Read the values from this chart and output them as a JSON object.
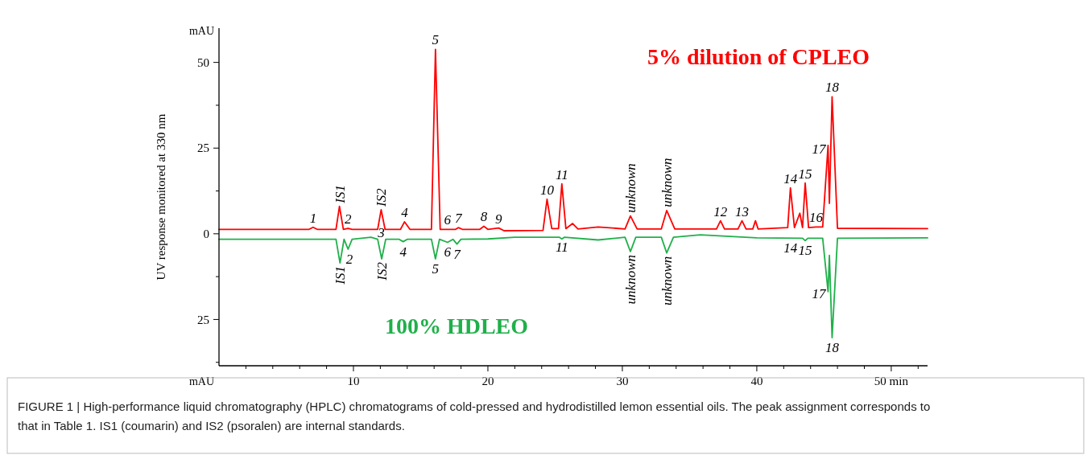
{
  "chart_data": {
    "type": "line",
    "ylabel": "UV response monitored at 330 nm",
    "xlim": [
      0,
      52.7
    ],
    "ylim": [
      -38.5,
      60
    ],
    "xticks": [
      {
        "value": 2,
        "label": null
      },
      {
        "value": 4,
        "label": null
      },
      {
        "value": 6,
        "label": null
      },
      {
        "value": 8,
        "label": null
      },
      10,
      {
        "value": 12,
        "label": null
      },
      {
        "value": 14,
        "label": null
      },
      {
        "value": 16,
        "label": null
      },
      {
        "value": 18,
        "label": null
      },
      20,
      {
        "value": 22,
        "label": null
      },
      {
        "value": 24,
        "label": null
      },
      {
        "value": 26,
        "label": null
      },
      {
        "value": 28,
        "label": null
      },
      30,
      {
        "value": 32,
        "label": null
      },
      {
        "value": 34,
        "label": null
      },
      {
        "value": 36,
        "label": null
      },
      {
        "value": 38,
        "label": null
      },
      40,
      {
        "value": 42,
        "label": null
      },
      {
        "value": 44,
        "label": null
      },
      {
        "value": 46,
        "label": null
      },
      {
        "value": 48,
        "label": null
      },
      {
        "value": 50,
        "label": "50 min"
      },
      {
        "value": 52,
        "label": null
      }
    ],
    "yticks": [
      {
        "value": -37.5,
        "label": null
      },
      {
        "value": -25,
        "label": "25"
      },
      {
        "value": -12.5,
        "label": null
      },
      0,
      {
        "value": 12.5,
        "label": null
      },
      25,
      {
        "value": 37.5,
        "label": null
      },
      50
    ],
    "series": [
      {
        "name": "5% dilution of CPLEO",
        "color": "#ff0000",
        "x": [
          0,
          6.7,
          7.0,
          7.3,
          8.7,
          8.96,
          9.25,
          9.6,
          9.9,
          11.8,
          12.06,
          12.35,
          13.5,
          13.8,
          14.2,
          15.8,
          16.1,
          16.45,
          17.6,
          17.8,
          18.1,
          19.4,
          19.7,
          20.0,
          20.8,
          21.2,
          24.1,
          24.4,
          24.75,
          25.25,
          25.5,
          25.8,
          26.3,
          26.7,
          28.2,
          30.2,
          30.6,
          31.1,
          32.9,
          33.3,
          33.9,
          37.0,
          37.3,
          37.6,
          38.6,
          38.9,
          39.2,
          39.7,
          39.9,
          40.1,
          42.3,
          42.5,
          42.8,
          43.2,
          43.4,
          43.6,
          43.85,
          44.4,
          44.9,
          45.3,
          45.4,
          45.6,
          46.0,
          52.7
        ],
        "values": [
          1.3,
          1.3,
          1.9,
          1.3,
          1.3,
          8.0,
          1.3,
          1.6,
          1.3,
          1.3,
          7.0,
          1.3,
          1.3,
          3.5,
          1.3,
          1.3,
          53.8,
          1.3,
          1.3,
          1.8,
          1.3,
          1.3,
          2.2,
          1.3,
          1.7,
          0.9,
          1.0,
          10.1,
          1.5,
          1.5,
          14.6,
          1.5,
          3.0,
          1.4,
          2.0,
          1.4,
          5.2,
          1.4,
          1.4,
          6.8,
          1.4,
          1.4,
          3.8,
          1.4,
          1.4,
          3.8,
          1.4,
          1.4,
          3.8,
          1.4,
          1.8,
          13.4,
          1.8,
          6.0,
          1.8,
          14.8,
          1.8,
          2.0,
          2.0,
          25.8,
          8.9,
          40.0,
          1.6,
          1.5
        ]
      },
      {
        "name": "100% HDLEO",
        "color": "#1fb04a",
        "x": [
          0,
          8.7,
          9.0,
          9.3,
          9.6,
          9.9,
          11.3,
          11.8,
          12.1,
          12.4,
          13.4,
          13.7,
          14.0,
          15.8,
          16.1,
          16.4,
          17.0,
          17.4,
          17.7,
          18.0,
          20.0,
          22.0,
          25.3,
          25.5,
          25.7,
          28.2,
          30.2,
          30.6,
          31.0,
          32.9,
          33.3,
          33.8,
          35.8,
          40.0,
          43.4,
          43.6,
          43.8,
          44.9,
          45.3,
          45.4,
          45.6,
          46.0,
          52.7
        ],
        "values": [
          -1.6,
          -1.6,
          -8.5,
          -1.6,
          -4.5,
          -1.6,
          -1.0,
          -1.6,
          -7.3,
          -1.6,
          -1.6,
          -2.3,
          -1.6,
          -1.6,
          -7.3,
          -1.6,
          -2.5,
          -1.6,
          -3.0,
          -1.6,
          -1.5,
          -1.0,
          -1.0,
          -1.5,
          -1.0,
          -1.8,
          -1.0,
          -5.2,
          -1.0,
          -1.0,
          -5.6,
          -1.0,
          -0.3,
          -1.2,
          -1.3,
          -2.0,
          -1.3,
          -1.3,
          -16.9,
          -6.3,
          -30.3,
          -1.3,
          -1.2
        ]
      }
    ],
    "annotations": [
      "mAU",
      "mAU",
      "FIGURE 1 | High-performance liquid chromatography (HPLC) chromatograms of cold-pressed and hydrodistilled lemon essential oils. The peak assignment corresponds to that in Table 1. IS1 (coumarin) and IS2 (psoralen) are internal standards.",
      {
        "text": "1",
        "x": 7.0,
        "y": 1.9
      },
      {
        "text": "IS1",
        "x": 8.96,
        "y": 8.0
      },
      {
        "text": "2",
        "x": 9.6,
        "y": 1.6
      },
      {
        "text": "IS2",
        "x": 12.06,
        "y": 7.0
      },
      {
        "text": "3",
        "x": 12.5,
        "y": 1.3
      },
      {
        "text": "4",
        "x": 13.8,
        "y": 3.5
      },
      {
        "text": "5",
        "x": 16.1,
        "y": 53.8
      },
      {
        "text": "6",
        "x": 17.0,
        "y": 1.3
      },
      {
        "text": "7",
        "x": 17.8,
        "y": 1.8
      },
      {
        "text": "8",
        "x": 19.7,
        "y": 2.2
      },
      {
        "text": "9",
        "x": 20.8,
        "y": 1.7
      },
      {
        "text": "10",
        "x": 24.4,
        "y": 10.1
      },
      {
        "text": "11",
        "x": 25.5,
        "y": 14.6
      },
      {
        "text": "unknown",
        "x": 30.6,
        "y": 5.2
      },
      {
        "text": "unknown",
        "x": 33.3,
        "y": 6.8
      },
      {
        "text": "12",
        "x": 37.3,
        "y": 3.8
      },
      {
        "text": "13",
        "x": 38.9,
        "y": 3.8
      },
      {
        "text": "14",
        "x": 42.5,
        "y": 13.4
      },
      {
        "text": "15",
        "x": 43.6,
        "y": 14.8
      },
      {
        "text": "16",
        "x": 44.4,
        "y": 2.0
      },
      {
        "text": "17",
        "x": 45.3,
        "y": 25.8
      },
      {
        "text": "18",
        "x": 45.6,
        "y": 40.0
      },
      {
        "text": "IS1",
        "x": 9.0,
        "y": -8.5
      },
      {
        "text": "2",
        "x": 9.7,
        "y": -4.5
      },
      {
        "text": "IS2",
        "x": 12.1,
        "y": -7.3
      },
      {
        "text": "4",
        "x": 13.7,
        "y": -2.3
      },
      {
        "text": "5",
        "x": 16.1,
        "y": -7.3
      },
      {
        "text": "6",
        "x": 17.0,
        "y": -2.5
      },
      {
        "text": "7",
        "x": 17.7,
        "y": -3.0
      },
      {
        "text": "11",
        "x": 25.5,
        "y": -1.0
      },
      {
        "text": "unknown",
        "x": 30.6,
        "y": -5.2
      },
      {
        "text": "unknown",
        "x": 33.3,
        "y": -5.6
      },
      {
        "text": "14",
        "x": 42.5,
        "y": -1.3
      },
      {
        "text": "15",
        "x": 43.6,
        "y": -2.0
      },
      {
        "text": "17",
        "x": 45.3,
        "y": -16.9
      },
      {
        "text": "18",
        "x": 45.6,
        "y": -30.3
      }
    ]
  }
}
